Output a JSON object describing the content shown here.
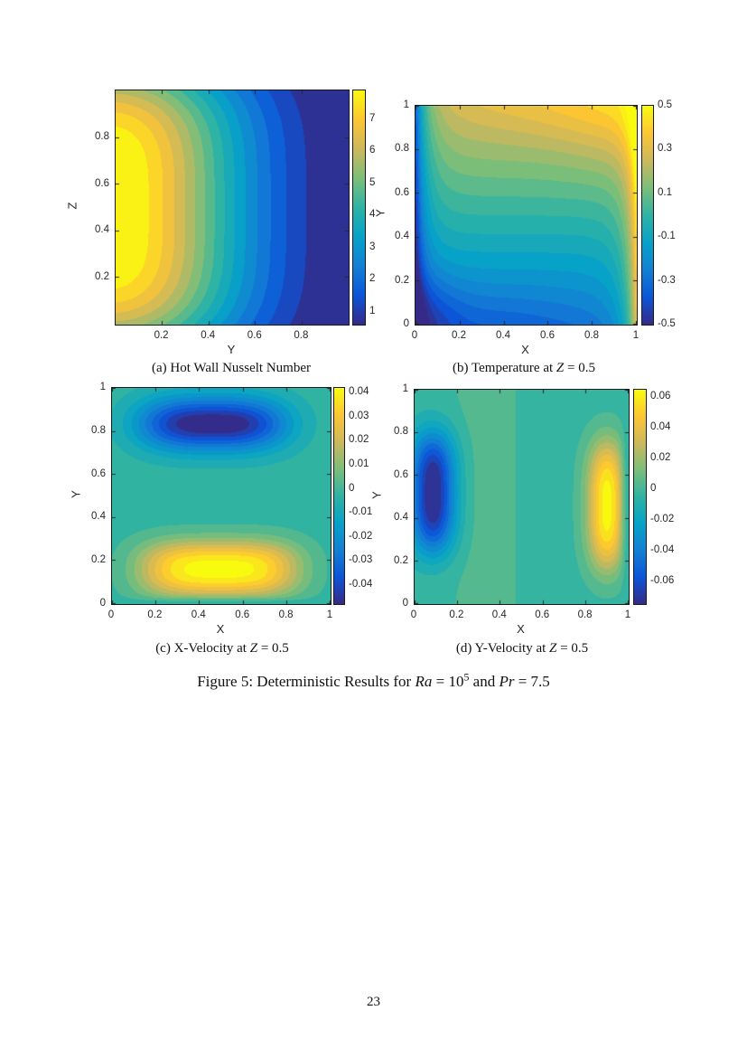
{
  "page": {
    "number": "23",
    "background": "#ffffff"
  },
  "figure_caption": {
    "p1": "Figure 5: Deterministic Results for ",
    "v1": "Ra",
    "p2": " = 10",
    "sup": "5",
    "p3": " and ",
    "v2": "Pr",
    "p4": " = 7.5"
  },
  "colormap": {
    "name": "parula",
    "stops": [
      "#352a87",
      "#0c55d8",
      "#1380d4",
      "#07a2c8",
      "#2eb3a4",
      "#7bbe7a",
      "#ccb85c",
      "#fcc633",
      "#f9fb0e"
    ]
  },
  "chart_data": [
    {
      "id": "a",
      "type": "filled-contour",
      "caption": {
        "pre": "(a) Hot Wall Nusselt Number",
        "var": "",
        "post": ""
      },
      "xlabel": "Y",
      "ylabel": "Z",
      "xlim": [
        0,
        1
      ],
      "ylim": [
        0,
        1
      ],
      "xticks": [
        {
          "v": 0.2,
          "label": "0.2"
        },
        {
          "v": 0.4,
          "label": "0.4"
        },
        {
          "v": 0.6,
          "label": "0.6"
        },
        {
          "v": 0.8,
          "label": "0.8"
        }
      ],
      "yticks": [
        {
          "v": 0.2,
          "label": "0.2"
        },
        {
          "v": 0.4,
          "label": "0.4"
        },
        {
          "v": 0.6,
          "label": "0.6"
        },
        {
          "v": 0.8,
          "label": "0.8"
        }
      ],
      "caxis": [
        0.6,
        7.9
      ],
      "levels": {
        "min": 1.0,
        "max": 7.5,
        "step": 0.5
      },
      "colorbar_ticks": [
        {
          "v": 7,
          "label": "7"
        },
        {
          "v": 6,
          "label": "6"
        },
        {
          "v": 5,
          "label": "5"
        },
        {
          "v": 4,
          "label": "4"
        },
        {
          "v": 3,
          "label": "3"
        },
        {
          "v": 2,
          "label": "2"
        },
        {
          "v": 1,
          "label": "1"
        }
      ],
      "field_terms": [
        {
          "type": "aniso",
          "amp": 8.1,
          "cx": -0.02,
          "cy": 0.5,
          "sx": 0.58,
          "sy": 0.66,
          "px": 2,
          "py": 4
        }
      ]
    },
    {
      "id": "b",
      "type": "filled-contour",
      "caption": {
        "pre": "(b) Temperature at ",
        "var": "Z",
        "post": " = 0.5"
      },
      "xlabel": "X",
      "ylabel": "Y",
      "xlim": [
        0,
        1
      ],
      "ylim": [
        0,
        1
      ],
      "xticks": [
        {
          "v": 0,
          "label": "0"
        },
        {
          "v": 0.2,
          "label": "0.2"
        },
        {
          "v": 0.4,
          "label": "0.4"
        },
        {
          "v": 0.6,
          "label": "0.6"
        },
        {
          "v": 0.8,
          "label": "0.8"
        },
        {
          "v": 1,
          "label": "1"
        }
      ],
      "yticks": [
        {
          "v": 0,
          "label": "0"
        },
        {
          "v": 0.2,
          "label": "0.2"
        },
        {
          "v": 0.4,
          "label": "0.4"
        },
        {
          "v": 0.6,
          "label": "0.6"
        },
        {
          "v": 0.8,
          "label": "0.8"
        },
        {
          "v": 1,
          "label": "1"
        }
      ],
      "caxis": [
        -0.5,
        0.5
      ],
      "levels": {
        "min": -0.5,
        "max": 0.5,
        "step": 0.05
      },
      "colorbar_ticks": [
        {
          "v": 0.5,
          "label": "0.5"
        },
        {
          "v": 0.3,
          "label": "0.3"
        },
        {
          "v": 0.1,
          "label": "0.1"
        },
        {
          "v": -0.1,
          "label": "-0.1"
        },
        {
          "v": -0.3,
          "label": "-0.3"
        },
        {
          "v": -0.5,
          "label": "-0.5"
        }
      ],
      "field_terms": [
        {
          "type": "wallx",
          "side": "left",
          "amp": -0.46,
          "k": 0.045,
          "pow": 1
        },
        {
          "type": "wallx",
          "side": "right",
          "amp": 0.46,
          "k": 0.045,
          "pow": 1
        },
        {
          "type": "strat",
          "amp": 0.58,
          "damp": 0.55,
          "k": 0.09
        },
        {
          "type": "aniso",
          "amp": -0.16,
          "cx": 0.02,
          "cy": 0.02,
          "sx": 0.18,
          "sy": 0.22,
          "px": 2,
          "py": 2
        },
        {
          "type": "aniso",
          "amp": 0.13,
          "cx": 0.98,
          "cy": 1.0,
          "sx": 0.28,
          "sy": 0.3,
          "px": 2,
          "py": 2
        },
        {
          "type": "aniso",
          "amp": -0.05,
          "cx": 0.35,
          "cy": 0.0,
          "sx": 0.35,
          "sy": 0.18,
          "px": 2,
          "py": 2
        },
        {
          "type": "aniso",
          "amp": 0.05,
          "cx": 0.65,
          "cy": 1.0,
          "sx": 0.35,
          "sy": 0.18,
          "px": 2,
          "py": 2
        }
      ]
    },
    {
      "id": "c",
      "type": "filled-contour",
      "caption": {
        "pre": "(c) X-Velocity at ",
        "var": "Z",
        "post": " = 0.5"
      },
      "xlabel": "X",
      "ylabel": "Y",
      "xlim": [
        0,
        1
      ],
      "ylim": [
        0,
        1
      ],
      "xticks": [
        {
          "v": 0,
          "label": "0"
        },
        {
          "v": 0.2,
          "label": "0.2"
        },
        {
          "v": 0.4,
          "label": "0.4"
        },
        {
          "v": 0.6,
          "label": "0.6"
        },
        {
          "v": 0.8,
          "label": "0.8"
        },
        {
          "v": 1,
          "label": "1"
        }
      ],
      "yticks": [
        {
          "v": 0,
          "label": "0"
        },
        {
          "v": 0.2,
          "label": "0.2"
        },
        {
          "v": 0.4,
          "label": "0.4"
        },
        {
          "v": 0.6,
          "label": "0.6"
        },
        {
          "v": 0.8,
          "label": "0.8"
        },
        {
          "v": 1,
          "label": "1"
        }
      ],
      "caxis": [
        -0.048,
        0.042
      ],
      "levels": {
        "min": -0.045,
        "max": 0.04,
        "step": 0.005
      },
      "colorbar_ticks": [
        {
          "v": 0.04,
          "label": "0.04"
        },
        {
          "v": 0.03,
          "label": "0.03"
        },
        {
          "v": 0.02,
          "label": "0.02"
        },
        {
          "v": 0.01,
          "label": "0.01"
        },
        {
          "v": 0,
          "label": "0"
        },
        {
          "v": -0.01,
          "label": "-0.01"
        },
        {
          "v": -0.02,
          "label": "-0.02"
        },
        {
          "v": -0.03,
          "label": "-0.03"
        },
        {
          "v": -0.04,
          "label": "-0.04"
        }
      ],
      "field_terms": [
        {
          "type": "aniso",
          "amp": 0.0445,
          "cx": 0.49,
          "cy": 0.16,
          "sx": 0.36,
          "sy": 0.13,
          "px": 3.5,
          "py": 2.4,
          "walls": [
            {
              "axis": "y",
              "at": 0,
              "k": 0.025
            }
          ]
        },
        {
          "type": "aniso",
          "amp": -0.0485,
          "cx": 0.46,
          "cy": 0.835,
          "sx": 0.34,
          "sy": 0.125,
          "px": 3,
          "py": 2
        },
        {
          "type": "const",
          "amp": -0.002
        }
      ]
    },
    {
      "id": "d",
      "type": "filled-contour",
      "caption": {
        "pre": "(d) Y-Velocity at ",
        "var": "Z",
        "post": " = 0.5"
      },
      "xlabel": "X",
      "ylabel": "Y",
      "xlim": [
        0,
        1
      ],
      "ylim": [
        0,
        1
      ],
      "xticks": [
        {
          "v": 0,
          "label": "0"
        },
        {
          "v": 0.2,
          "label": "0.2"
        },
        {
          "v": 0.4,
          "label": "0.4"
        },
        {
          "v": 0.6,
          "label": "0.6"
        },
        {
          "v": 0.8,
          "label": "0.8"
        },
        {
          "v": 1,
          "label": "1"
        }
      ],
      "yticks": [
        {
          "v": 0,
          "label": "0"
        },
        {
          "v": 0.2,
          "label": "0.2"
        },
        {
          "v": 0.4,
          "label": "0.4"
        },
        {
          "v": 0.6,
          "label": "0.6"
        },
        {
          "v": 0.8,
          "label": "0.8"
        },
        {
          "v": 1,
          "label": "1"
        }
      ],
      "caxis": [
        -0.0747,
        0.0647
      ],
      "levels": {
        "min": -0.0675,
        "max": 0.06,
        "step": 0.0075
      },
      "colorbar_ticks": [
        {
          "v": 0.06,
          "label": "0.06"
        },
        {
          "v": 0.04,
          "label": "0.04"
        },
        {
          "v": 0.02,
          "label": "0.02"
        },
        {
          "v": 0,
          "label": "0"
        },
        {
          "v": -0.02,
          "label": "-0.02"
        },
        {
          "v": -0.04,
          "label": "-0.04"
        },
        {
          "v": -0.06,
          "label": "-0.06"
        }
      ],
      "field_terms": [
        {
          "type": "aniso",
          "amp": -0.0745,
          "cx": 0.085,
          "cy": 0.52,
          "sx": 0.105,
          "sy": 0.28,
          "px": 2,
          "py": 3
        },
        {
          "type": "aniso",
          "amp": 0.067,
          "cx": 0.9,
          "cy": 0.46,
          "sx": 0.09,
          "sy": 0.3,
          "px": 2,
          "py": 3,
          "walls": [
            {
              "axis": "x",
              "at": 1,
              "k": 0.03
            }
          ]
        },
        {
          "type": "bandx",
          "amp": 0.006,
          "cx": 0.33,
          "sx": 0.17
        },
        {
          "type": "const",
          "amp": -0.003
        }
      ]
    }
  ]
}
